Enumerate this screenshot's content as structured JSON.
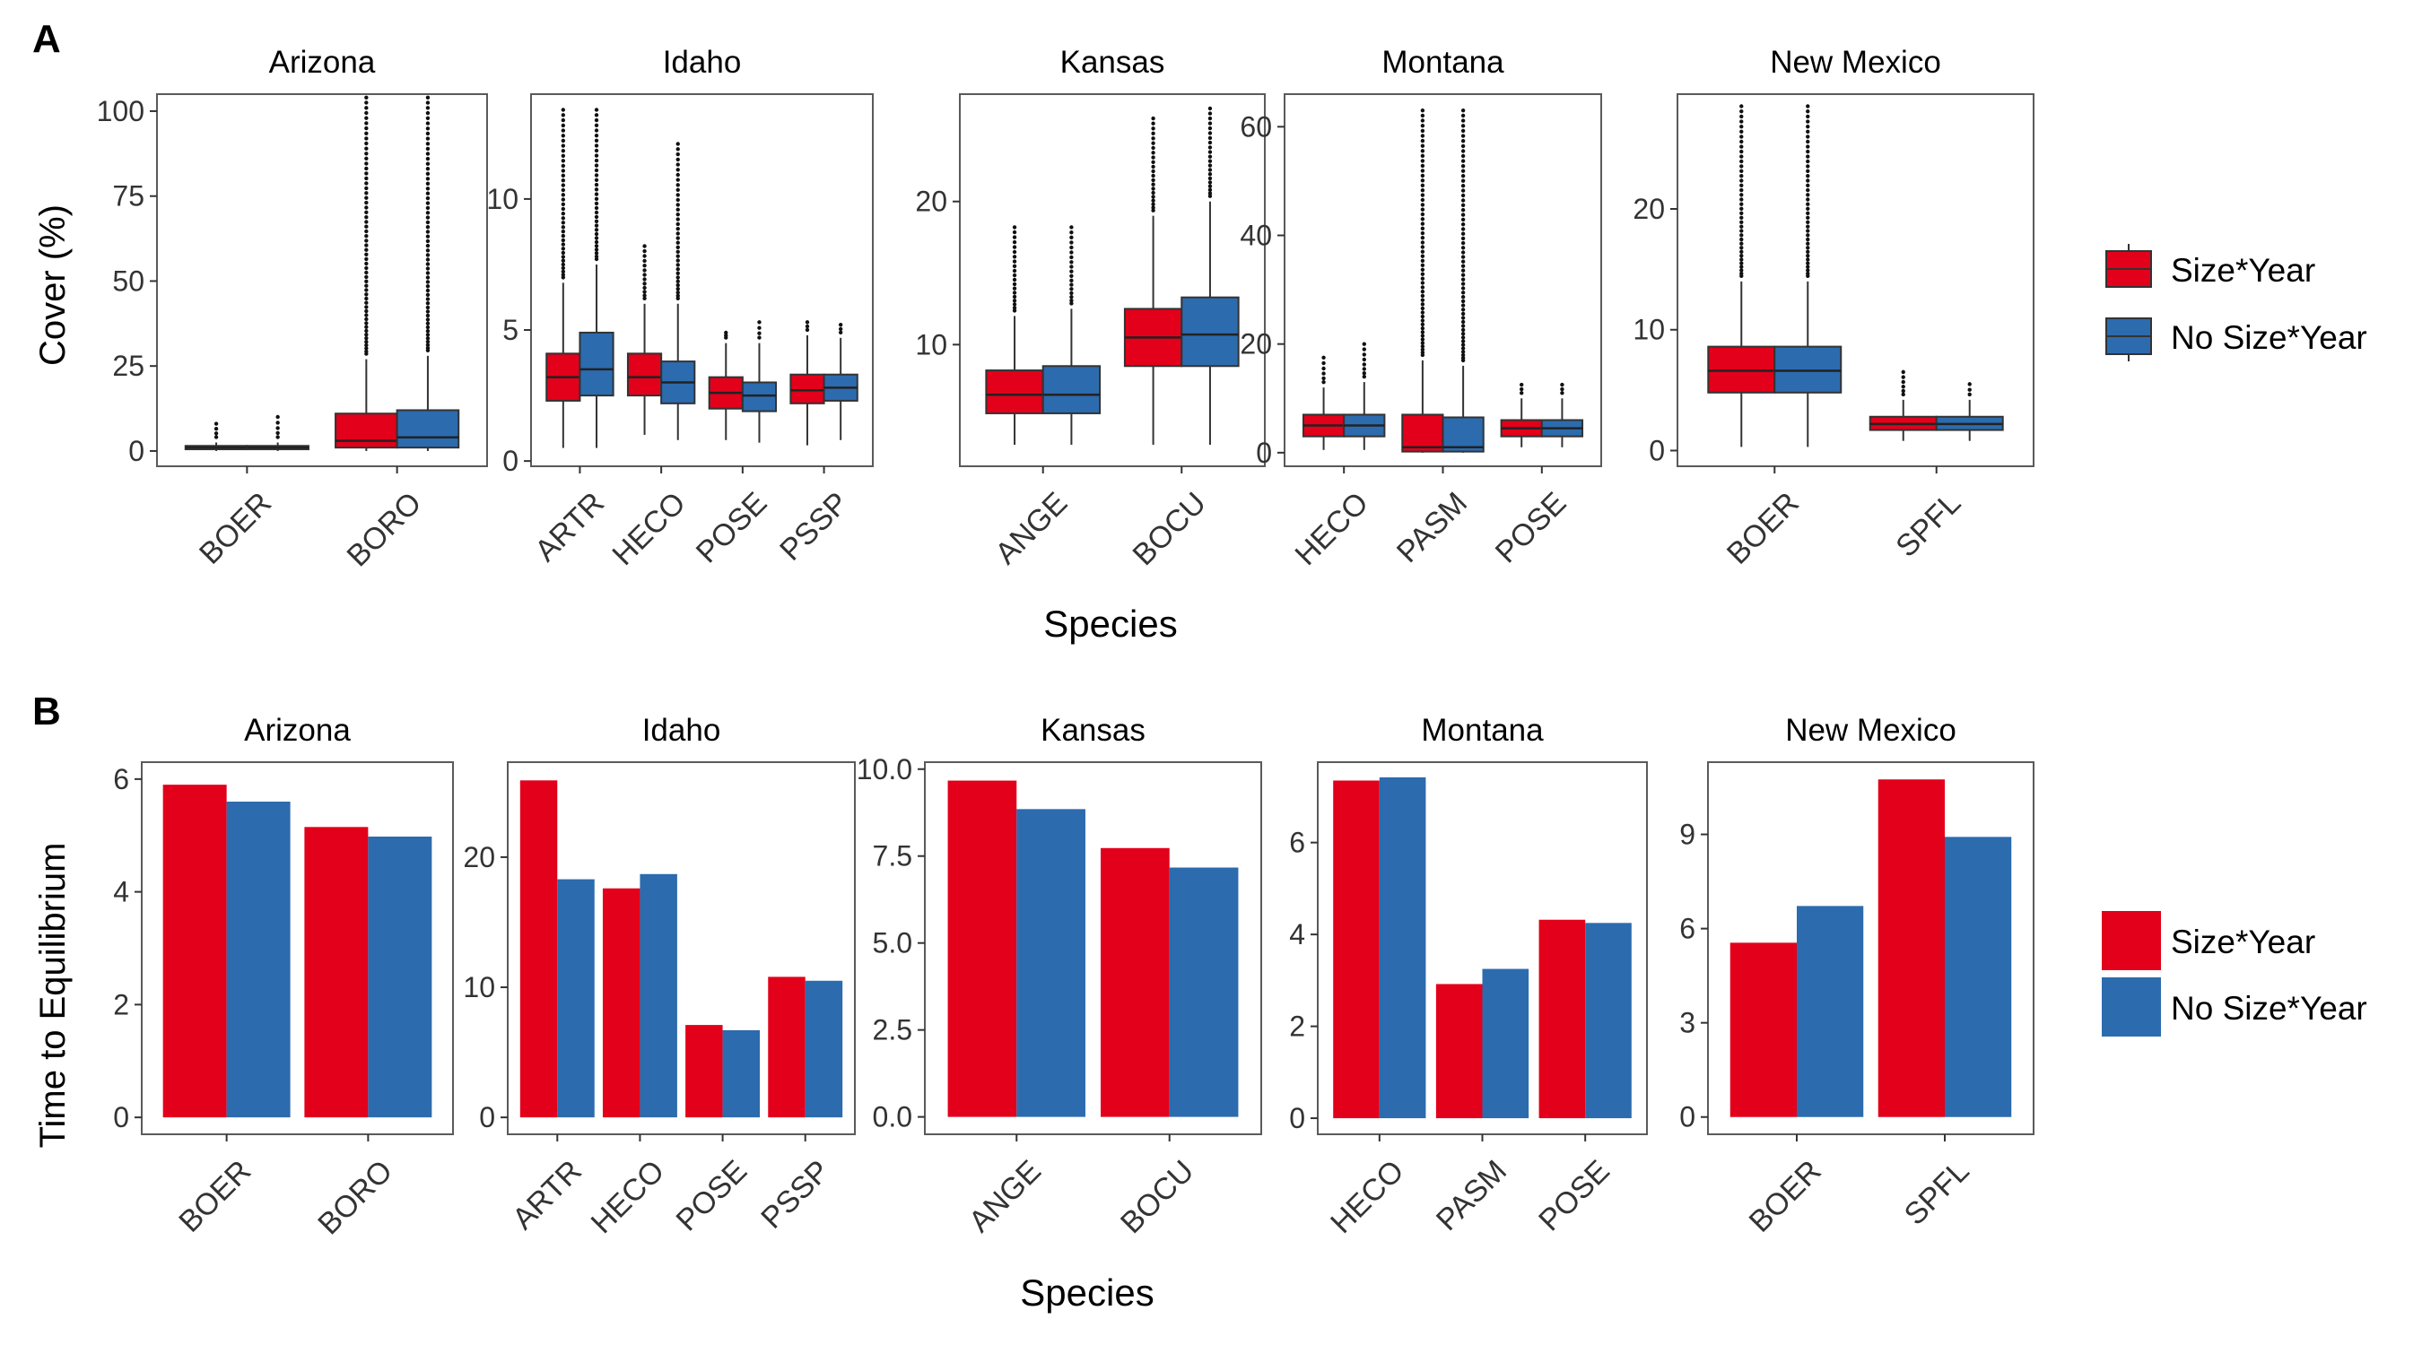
{
  "colors": {
    "size_year": "#E2001A",
    "no_size_year": "#2C6BAE",
    "panel_border": "#5a5a5a",
    "text": "#333333"
  },
  "panel_labels": [
    "A",
    "B"
  ],
  "legend": [
    "Size*Year",
    "No Size*Year"
  ],
  "chart_data": [
    {
      "type": "box",
      "panel": "A",
      "ylabel": "Cover (%)",
      "xlabel": "Species",
      "series_names": [
        "Size*Year",
        "No Size*Year"
      ],
      "facets": [
        {
          "title": "Arizona",
          "ylim": [
            -4.5,
            105
          ],
          "yticks": [
            0,
            25,
            50,
            75,
            100
          ],
          "categories": [
            "BOER",
            "BORO"
          ],
          "boxes": [
            [
              {
                "low": 0,
                "q1": 0.5,
                "median": 1,
                "q3": 1.5,
                "high": 2.5,
                "out_max": 8
              },
              {
                "low": 0,
                "q1": 0.5,
                "median": 1,
                "q3": 1.5,
                "high": 2.5,
                "out_max": 10
              }
            ],
            [
              {
                "low": 0,
                "q1": 1,
                "median": 3,
                "q3": 11,
                "high": 27,
                "out_max": 104
              },
              {
                "low": 0,
                "q1": 1,
                "median": 4,
                "q3": 12,
                "high": 28,
                "out_max": 104
              }
            ]
          ]
        },
        {
          "title": "Idaho",
          "ylim": [
            -0.2,
            14
          ],
          "yticks": [
            0,
            5,
            10
          ],
          "categories": [
            "ARTR",
            "HECO",
            "POSE",
            "PSSP"
          ],
          "boxes": [
            [
              {
                "low": 0.5,
                "q1": 2.3,
                "median": 3.2,
                "q3": 4.1,
                "high": 6.8,
                "out_max": 13.4
              },
              {
                "low": 0.5,
                "q1": 2.5,
                "median": 3.5,
                "q3": 4.9,
                "high": 7.5,
                "out_max": 13.4
              }
            ],
            [
              {
                "low": 1,
                "q1": 2.5,
                "median": 3.2,
                "q3": 4.1,
                "high": 6,
                "out_max": 8.2
              },
              {
                "low": 0.8,
                "q1": 2.2,
                "median": 3,
                "q3": 3.8,
                "high": 6,
                "out_max": 12.1
              }
            ],
            [
              {
                "low": 0.8,
                "q1": 2,
                "median": 2.6,
                "q3": 3.2,
                "high": 4.5,
                "out_max": 4.9
              },
              {
                "low": 0.7,
                "q1": 1.9,
                "median": 2.5,
                "q3": 3,
                "high": 4.5,
                "out_max": 5.3
              }
            ],
            [
              {
                "low": 0.6,
                "q1": 2.2,
                "median": 2.7,
                "q3": 3.3,
                "high": 4.8,
                "out_max": 5.3
              },
              {
                "low": 0.8,
                "q1": 2.3,
                "median": 2.8,
                "q3": 3.3,
                "high": 4.7,
                "out_max": 5.2
              }
            ]
          ]
        },
        {
          "title": "Kansas",
          "ylim": [
            1.5,
            27.5
          ],
          "yticks": [
            10,
            20
          ],
          "categories": [
            "ANGE",
            "BOCU"
          ],
          "boxes": [
            [
              {
                "low": 3,
                "q1": 5.2,
                "median": 6.5,
                "q3": 8.2,
                "high": 12,
                "out_max": 18.2
              },
              {
                "low": 3,
                "q1": 5.2,
                "median": 6.5,
                "q3": 8.5,
                "high": 12.5,
                "out_max": 18.2
              }
            ],
            [
              {
                "low": 3,
                "q1": 8.5,
                "median": 10.5,
                "q3": 12.5,
                "high": 19,
                "out_max": 25.8
              },
              {
                "low": 3,
                "q1": 8.5,
                "median": 10.7,
                "q3": 13.3,
                "high": 20,
                "out_max": 26.5
              }
            ]
          ]
        },
        {
          "title": "Montana",
          "ylim": [
            -2.5,
            66
          ],
          "yticks": [
            0,
            20,
            40,
            60
          ],
          "categories": [
            "HECO",
            "PASM",
            "POSE"
          ],
          "boxes": [
            [
              {
                "low": 0.5,
                "q1": 3,
                "median": 5,
                "q3": 7,
                "high": 12,
                "out_max": 17.5
              },
              {
                "low": 0.5,
                "q1": 3,
                "median": 5,
                "q3": 7,
                "high": 13,
                "out_max": 20
              }
            ],
            [
              {
                "low": 0,
                "q1": 0.2,
                "median": 1,
                "q3": 7,
                "high": 17,
                "out_max": 63
              },
              {
                "low": 0,
                "q1": 0.2,
                "median": 1,
                "q3": 6.5,
                "high": 16,
                "out_max": 63
              }
            ],
            [
              {
                "low": 1,
                "q1": 3,
                "median": 4.5,
                "q3": 6,
                "high": 10,
                "out_max": 12.5
              },
              {
                "low": 1,
                "q1": 3,
                "median": 4.5,
                "q3": 6,
                "high": 10,
                "out_max": 12.5
              }
            ]
          ]
        },
        {
          "title": "New Mexico",
          "ylim": [
            -1.3,
            29.5
          ],
          "yticks": [
            0,
            10,
            20
          ],
          "categories": [
            "BOER",
            "SPFL"
          ],
          "boxes": [
            [
              {
                "low": 0.3,
                "q1": 4.8,
                "median": 6.6,
                "q3": 8.6,
                "high": 14,
                "out_max": 28.5
              },
              {
                "low": 0.3,
                "q1": 4.8,
                "median": 6.6,
                "q3": 8.6,
                "high": 14,
                "out_max": 28.5
              }
            ],
            [
              {
                "low": 0.8,
                "q1": 1.7,
                "median": 2.2,
                "q3": 2.8,
                "high": 4.2,
                "out_max": 6.5
              },
              {
                "low": 0.8,
                "q1": 1.7,
                "median": 2.2,
                "q3": 2.8,
                "high": 4.2,
                "out_max": 5.5
              }
            ]
          ]
        }
      ]
    },
    {
      "type": "bar",
      "panel": "B",
      "ylabel": "Time to Equilibrium",
      "xlabel": "Species",
      "series_names": [
        "Size*Year",
        "No Size*Year"
      ],
      "facets": [
        {
          "title": "Arizona",
          "ylim": [
            -0.3,
            6.3
          ],
          "yticks": [
            0,
            2,
            4,
            6
          ],
          "ytick_labels": [
            "0",
            "2",
            "4",
            "6"
          ],
          "categories": [
            "BOER",
            "BORO"
          ],
          "values": [
            [
              5.9,
              5.6
            ],
            [
              5.15,
              4.98
            ]
          ]
        },
        {
          "title": "Idaho",
          "ylim": [
            -1.3,
            27.3
          ],
          "yticks": [
            0,
            10,
            20
          ],
          "ytick_labels": [
            "0",
            "10",
            "20"
          ],
          "categories": [
            "ARTR",
            "HECO",
            "POSE",
            "PSSP"
          ],
          "values": [
            [
              25.9,
              18.3
            ],
            [
              17.6,
              18.7
            ],
            [
              7.1,
              6.7
            ],
            [
              10.8,
              10.5
            ]
          ]
        },
        {
          "title": "Kansas",
          "ylim": [
            -0.5,
            10.2
          ],
          "yticks": [
            0,
            2.5,
            5,
            7.5,
            10
          ],
          "ytick_labels": [
            "0.0",
            "2.5",
            "5.0",
            "7.5",
            "10.0"
          ],
          "categories": [
            "ANGE",
            "BOCU"
          ],
          "values": [
            [
              9.67,
              8.85
            ],
            [
              7.73,
              7.17
            ]
          ]
        },
        {
          "title": "Montana",
          "ylim": [
            -0.35,
            7.75
          ],
          "yticks": [
            0,
            2,
            4,
            6
          ],
          "ytick_labels": [
            "0",
            "2",
            "4",
            "6"
          ],
          "categories": [
            "HECO",
            "PASM",
            "POSE"
          ],
          "values": [
            [
              7.35,
              7.42
            ],
            [
              2.92,
              3.25
            ],
            [
              4.32,
              4.25
            ]
          ]
        },
        {
          "title": "New Mexico",
          "ylim": [
            -0.55,
            11.3
          ],
          "yticks": [
            0,
            3,
            6,
            9
          ],
          "ytick_labels": [
            "0",
            "3",
            "6",
            "9"
          ],
          "categories": [
            "BOER",
            "SPFL"
          ],
          "values": [
            [
              5.55,
              6.72
            ],
            [
              10.75,
              8.92
            ]
          ]
        }
      ]
    }
  ]
}
